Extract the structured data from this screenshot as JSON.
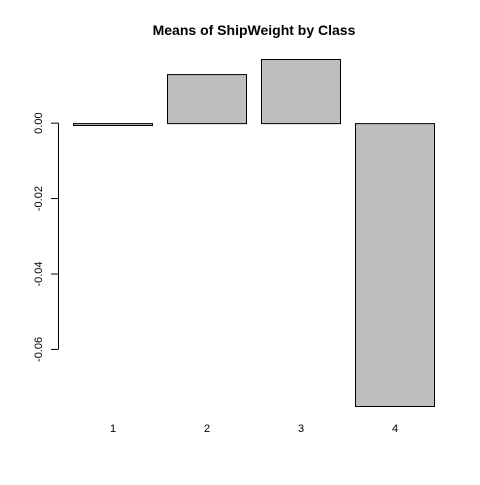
{
  "chart_data": {
    "type": "bar",
    "title": "Means of ShipWeight by Class",
    "xlabel": "",
    "ylabel": "",
    "categories": [
      "1",
      "2",
      "3",
      "4"
    ],
    "values": [
      -0.0005,
      0.013,
      0.017,
      -0.075
    ],
    "ylim": [
      -0.075,
      0.017
    ],
    "yticks": [
      0.0,
      -0.02,
      -0.04,
      -0.06
    ],
    "ytick_labels": [
      "0.00",
      "-0.02",
      "-0.04",
      "-0.06"
    ],
    "grid": false,
    "legend": "none",
    "bar_fill": "#bebebe",
    "bar_stroke": "#000000"
  }
}
